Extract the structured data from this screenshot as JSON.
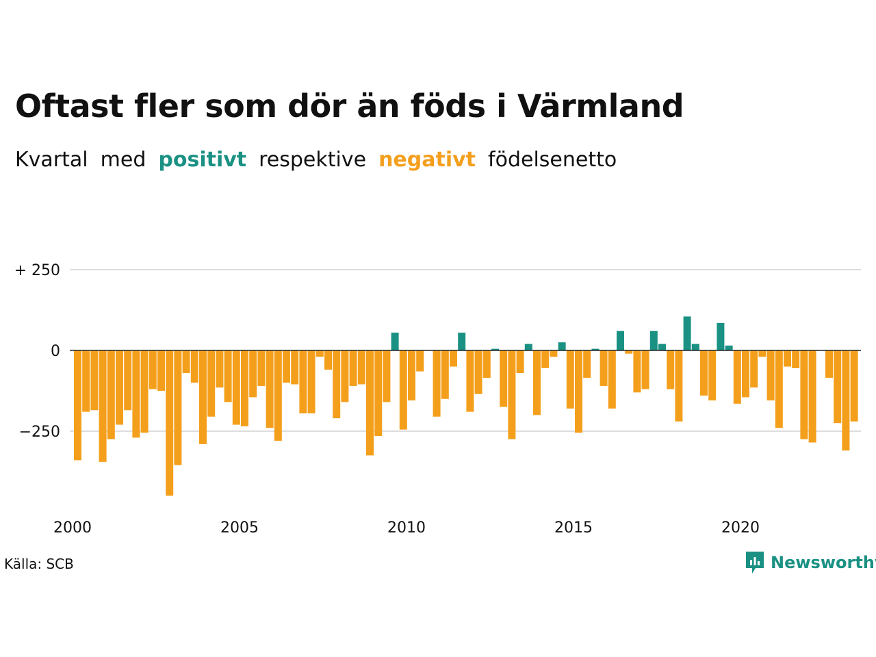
{
  "header": {
    "title": "Oftast fler som dör än föds i Värmland",
    "subtitle_parts": [
      "Kvartal",
      "med",
      "positivt",
      "respektive",
      "negativt",
      "födelsenetto"
    ]
  },
  "footer": {
    "source": "Källa: SCB",
    "brand": "Newsworthy"
  },
  "colors": {
    "positive": "#1a9183",
    "negative": "#f49f1c",
    "grid": "#dddddd",
    "zero_line": "#222222"
  },
  "chart_data": {
    "type": "bar",
    "x_start": "2000 Q1",
    "x_tick_labels": [
      "2000",
      "2005",
      "2010",
      "2015",
      "2020"
    ],
    "y_tick_labels": [
      "+ 250",
      "0",
      "−250"
    ],
    "y_ticks": [
      250,
      0,
      -250
    ],
    "ylim": [
      -450,
      250
    ],
    "grid": true,
    "values": [
      -340,
      -190,
      -185,
      -345,
      -275,
      -230,
      -185,
      -270,
      -255,
      -120,
      -125,
      -450,
      -355,
      -70,
      -100,
      -290,
      -205,
      -115,
      -160,
      -230,
      -235,
      -145,
      -110,
      -240,
      -280,
      -100,
      -105,
      -195,
      -195,
      -20,
      -60,
      -210,
      -160,
      -110,
      -105,
      -325,
      -265,
      -160,
      55,
      -245,
      -155,
      -65,
      0,
      -205,
      -150,
      -50,
      55,
      -190,
      -135,
      -85,
      5,
      -175,
      -275,
      -70,
      20,
      -200,
      -55,
      -20,
      25,
      -180,
      -255,
      -85,
      5,
      -110,
      -180,
      60,
      -10,
      -130,
      -120,
      60,
      20,
      -120,
      -220,
      105,
      20,
      -140,
      -155,
      85,
      15,
      -165,
      -145,
      -115,
      -20,
      -155,
      -240,
      -50,
      -55,
      -275,
      -285,
      0,
      -85,
      -225,
      -310,
      -220
    ]
  }
}
